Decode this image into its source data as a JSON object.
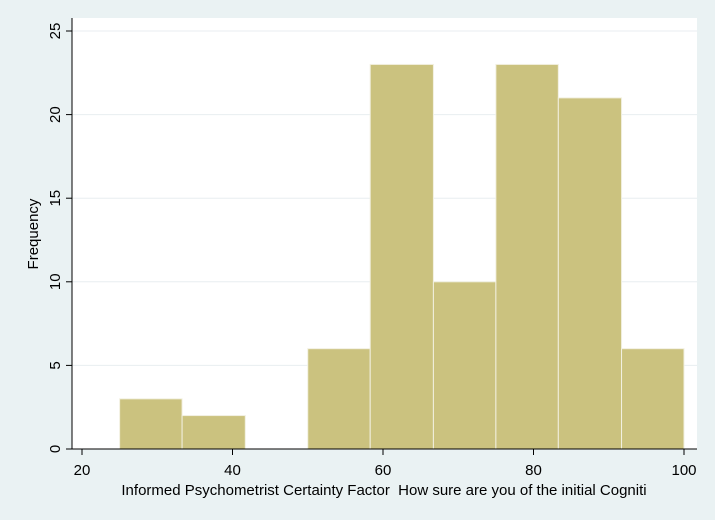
{
  "chart_data": {
    "type": "bar",
    "subtype": "histogram",
    "title": "",
    "xlabel": "Informed Psychometrist Certainty Factor  How sure are you of the initial Cogniti",
    "ylabel": "Frequency",
    "xlim": [
      20,
      100
    ],
    "ylim": [
      0,
      25
    ],
    "xticks": [
      20,
      40,
      60,
      80,
      100
    ],
    "yticks": [
      0,
      5,
      10,
      15,
      20,
      25
    ],
    "bins": [
      {
        "start": 25.0,
        "end": 33.3,
        "count": 3
      },
      {
        "start": 33.3,
        "end": 41.7,
        "count": 2
      },
      {
        "start": 41.7,
        "end": 50.0,
        "count": 0
      },
      {
        "start": 50.0,
        "end": 58.3,
        "count": 6
      },
      {
        "start": 58.3,
        "end": 66.7,
        "count": 23
      },
      {
        "start": 66.7,
        "end": 75.0,
        "count": 10
      },
      {
        "start": 75.0,
        "end": 83.3,
        "count": 23
      },
      {
        "start": 83.3,
        "end": 91.7,
        "count": 21
      },
      {
        "start": 91.7,
        "end": 100.0,
        "count": 6
      }
    ],
    "grid": true,
    "colors": {
      "bar_fill": "#cbc27f",
      "bar_edge": "#f2f0e0",
      "plot_bg": "#ffffff",
      "page_bg": "#eaf2f3",
      "grid": "#e8eef0",
      "axis": "#000000"
    }
  }
}
